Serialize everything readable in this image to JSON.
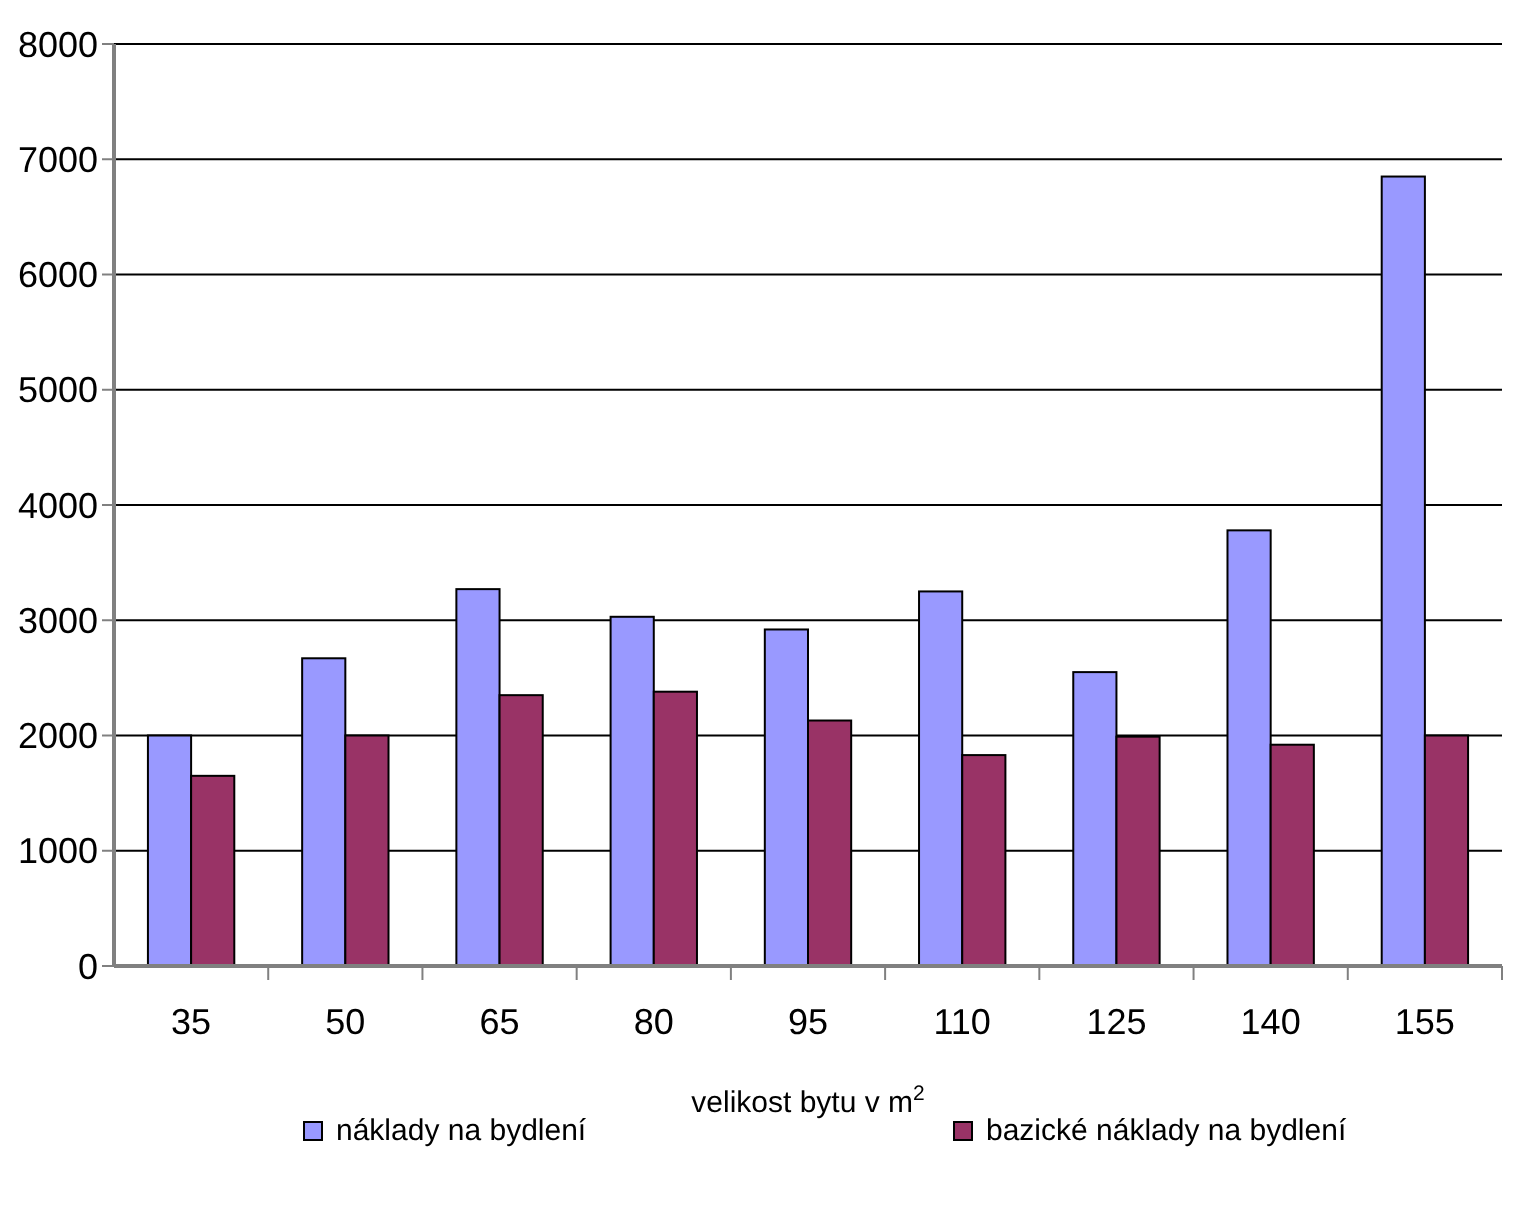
{
  "chart_data": {
    "type": "bar",
    "xlabel": "velikost bytu v m$^{2}$",
    "categories": [
      "35",
      "50",
      "65",
      "80",
      "95",
      "110",
      "125",
      "140",
      "155"
    ],
    "series": [
      {
        "name": "náklady na bydlení",
        "color": "#9999ff",
        "values": [
          2000,
          2670,
          3270,
          3030,
          2920,
          3250,
          2550,
          3780,
          6850
        ]
      },
      {
        "name": "bazické náklady na bydlení",
        "color": "#993366",
        "values": [
          1650,
          2000,
          2350,
          2380,
          2130,
          1830,
          1990,
          1920,
          2000
        ]
      }
    ],
    "ylim": [
      0,
      8000
    ],
    "yticks": [
      0,
      1000,
      2000,
      3000,
      4000,
      5000,
      6000,
      7000,
      8000
    ],
    "grid": "y",
    "legend": "bottom"
  }
}
